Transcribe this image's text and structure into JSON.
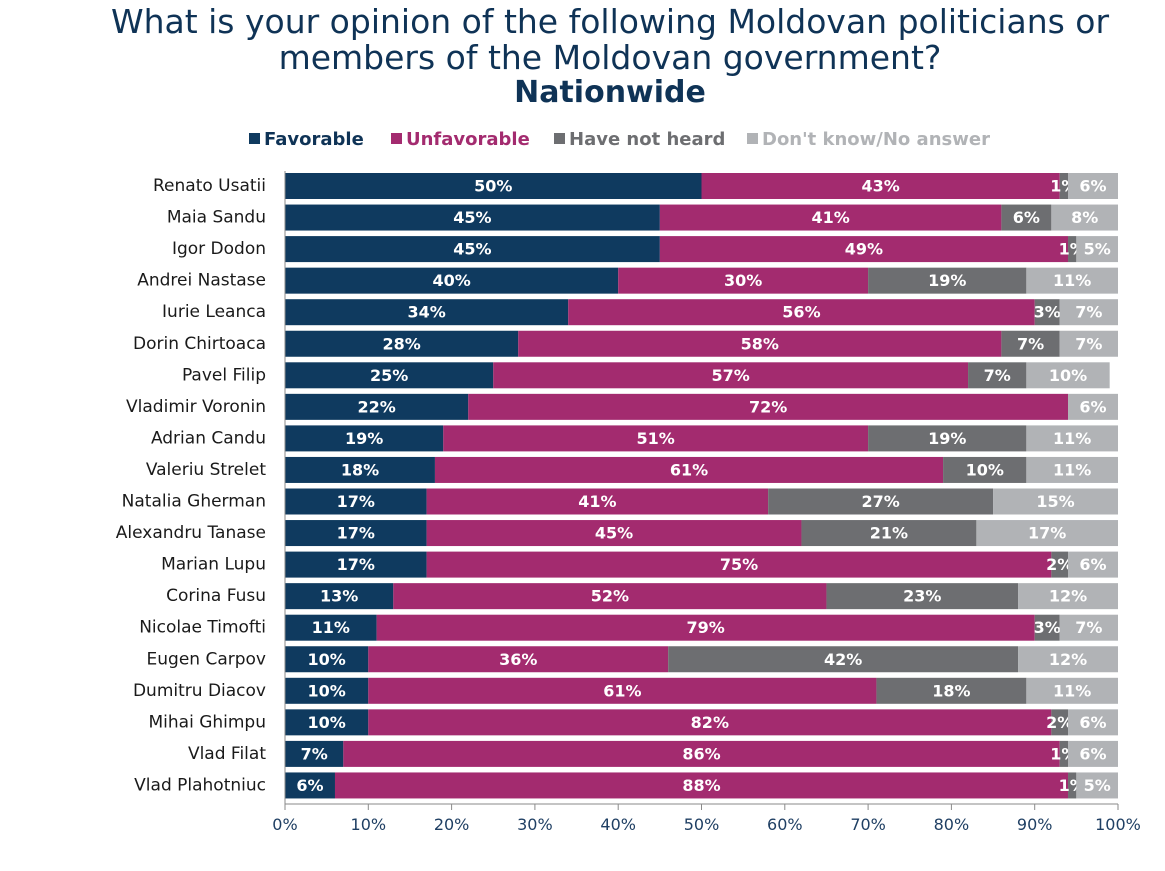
{
  "chart_data": {
    "type": "bar",
    "orientation": "horizontal",
    "stacked": true,
    "title_lines": [
      "What is your opinion of the following Moldovan politicians or",
      "members of the Moldovan government?"
    ],
    "subtitle": "Nationwide",
    "xlabel": "",
    "ylabel": "",
    "xlim": [
      0,
      100
    ],
    "x_ticks": [
      "0%",
      "10%",
      "20%",
      "30%",
      "40%",
      "50%",
      "60%",
      "70%",
      "80%",
      "90%",
      "100%"
    ],
    "legend_position": "top",
    "grid": false,
    "categories": [
      "Renato Usatii",
      "Maia Sandu",
      "Igor Dodon",
      "Andrei Nastase",
      "Iurie Leanca",
      "Dorin Chirtoaca",
      "Pavel Filip",
      "Vladimir Voronin",
      "Adrian Candu",
      "Valeriu Strelet",
      "Natalia Gherman",
      "Alexandru Tanase",
      "Marian Lupu",
      "Corina Fusu",
      "Nicolae Timofti",
      "Eugen Carpov",
      "Dumitru Diacov",
      "Mihai Ghimpu",
      "Vlad Filat",
      "Vlad Plahotniuc"
    ],
    "series": [
      {
        "name": "Favorable",
        "color": "#0f3a5f",
        "legend_color": "#0f3356",
        "values": [
          50,
          45,
          45,
          40,
          34,
          28,
          25,
          22,
          19,
          18,
          17,
          17,
          17,
          13,
          11,
          10,
          10,
          10,
          7,
          6
        ]
      },
      {
        "name": "Unfavorable",
        "color": "#a32b6f",
        "legend_color": "#a32b6f",
        "values": [
          43,
          41,
          49,
          30,
          56,
          58,
          57,
          72,
          51,
          61,
          41,
          45,
          75,
          52,
          79,
          36,
          61,
          82,
          86,
          88
        ]
      },
      {
        "name": "Have not heard",
        "color": "#6d6e71",
        "legend_color": "#6d6e71",
        "values": [
          1,
          6,
          1,
          19,
          3,
          7,
          7,
          0,
          19,
          10,
          27,
          21,
          2,
          23,
          3,
          42,
          18,
          2,
          1,
          1
        ]
      },
      {
        "name": "Don't know/No answer",
        "color": "#b1b3b6",
        "legend_color": "#b1b3b6",
        "values": [
          6,
          8,
          5,
          11,
          7,
          7,
          10,
          6,
          11,
          11,
          15,
          17,
          6,
          12,
          7,
          12,
          11,
          6,
          6,
          5
        ]
      }
    ],
    "data_labels": [
      [
        "50%",
        "43%",
        "1%",
        "6%"
      ],
      [
        "45%",
        "41%",
        "6%",
        "8%"
      ],
      [
        "45%",
        "49%",
        "1%",
        "5%"
      ],
      [
        "40%",
        "30%",
        "19%",
        "11%"
      ],
      [
        "34%",
        "56%",
        "3%",
        "7%"
      ],
      [
        "28%",
        "58%",
        "7%",
        "7%"
      ],
      [
        "25%",
        "57%",
        "7%",
        "10%"
      ],
      [
        "22%",
        "72%",
        "",
        "6%"
      ],
      [
        "19%",
        "51%",
        "19%",
        "11%"
      ],
      [
        "18%",
        "61%",
        "10%",
        "11%"
      ],
      [
        "17%",
        "41%",
        "27%",
        "15%"
      ],
      [
        "17%",
        "45%",
        "21%",
        "17%"
      ],
      [
        "17%",
        "75%",
        "2%",
        "6%"
      ],
      [
        "13%",
        "52%",
        "23%",
        "12%"
      ],
      [
        "11%",
        "79%",
        "3%",
        "7%"
      ],
      [
        "10%",
        "36%",
        "42%",
        "12%"
      ],
      [
        "10%",
        "61%",
        "18%",
        "11%"
      ],
      [
        "10%",
        "82%",
        "2%",
        "6%"
      ],
      [
        "7%",
        "86%",
        "1%",
        "6%"
      ],
      [
        "6%",
        "88%",
        "1%",
        "5%"
      ]
    ]
  }
}
